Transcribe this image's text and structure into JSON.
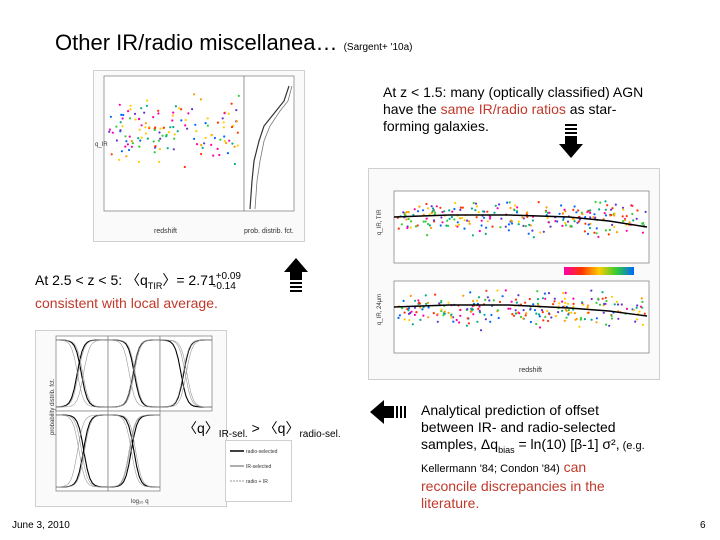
{
  "slide": {
    "title": "Other IR/radio miscellanea…",
    "title_ref": "(Sargent+ '10a)",
    "note1": {
      "line1": "At z < 1.5: many (optically classified) AGN",
      "line2_pre": "have the ",
      "line2_red": "same IR/radio ratios",
      "line2_post": " as star-",
      "line3": "forming galaxies."
    },
    "note2": {
      "pre": "At 2.5 < z < 5: 〈q",
      "sub": "TIR",
      "mid": "〉= 2.71",
      "sup": "+0.09",
      "sub2": "-0.14",
      "line2": "consistent with local average."
    },
    "note3": {
      "q1": "〈q〉",
      "s1": "IR-sel.",
      "gt": " > ",
      "q2": "〈q〉",
      "s2": "radio-sel."
    },
    "note4": {
      "l1": "Analytical prediction of offset",
      "l2": "between IR- and radio-selected",
      "l3_pre": "samples, Δq",
      "l3_sub": "bias",
      "l3_post": " = ln(10) [β-1] σ²,",
      "l3_small": " (e.g.",
      "l4_small": "Kellermann '84; Condon '84)",
      "l4_red": " can",
      "l5": "reconcile discrepancies in the",
      "l6": "literature."
    },
    "date": "June 3, 2010",
    "page_number": "6"
  },
  "figures": {
    "top_left": {
      "xlabel": "redshift",
      "xlabel2": "prob. distrib. fct.",
      "ylabel": "q_IR"
    },
    "right": {
      "xlabel": "redshift",
      "ylabel_top": "q_IR, TIR",
      "ylabel_bottom": "q_IR, 24μm"
    },
    "bottom_left": {
      "xlabel": "log₁₀ q",
      "ylabel": "probability distrib. fct."
    },
    "legend_box": {
      "l1": "radio-selected",
      "l2": "IR-selected",
      "l3": "radio + IR"
    }
  },
  "colors": {
    "red_text": "#c0392b",
    "arrow": "#000000"
  }
}
